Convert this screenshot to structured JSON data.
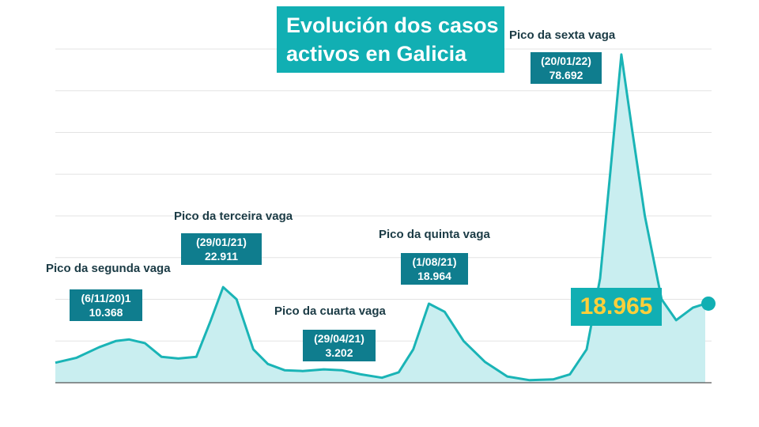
{
  "title": {
    "line1": "Evolución dos casos",
    "line2": "activos en Galicia"
  },
  "colors": {
    "accent": "#11afb3",
    "label_box": "#0f7d8e",
    "area_fill": "#c9eef0",
    "line": "#1ab4b6",
    "highlight_text": "#ffcf3a",
    "grid": "#e3e3e3"
  },
  "current_value": "18.965",
  "peaks": [
    {
      "label": "Pico da segunda vaga",
      "date": "(6/11/20)1",
      "value": "10.368"
    },
    {
      "label": "Pico da terceira vaga",
      "date": "(29/01/21)",
      "value": "22.911"
    },
    {
      "label": "Pico da cuarta vaga",
      "date": "(29/04/21)",
      "value": "3.202"
    },
    {
      "label": "Pico da quinta vaga",
      "date": "(1/08/21)",
      "value": "18.964"
    },
    {
      "label": "Pico da sexta vaga",
      "date": "(20/01/22)",
      "value": "78.692"
    }
  ],
  "chart_data": {
    "type": "area",
    "title": "Evolución dos casos activos en Galicia",
    "xlabel": "",
    "ylabel": "",
    "ylim": [
      0,
      80000
    ],
    "grid": true,
    "x": [
      "2020-09-01",
      "2020-09-20",
      "2020-10-10",
      "2020-10-25",
      "2020-11-06",
      "2020-11-20",
      "2020-12-05",
      "2020-12-20",
      "2021-01-05",
      "2021-01-18",
      "2021-01-29",
      "2021-02-10",
      "2021-02-25",
      "2021-03-10",
      "2021-03-25",
      "2021-04-10",
      "2021-04-29",
      "2021-05-15",
      "2021-06-01",
      "2021-06-20",
      "2021-07-05",
      "2021-07-18",
      "2021-08-01",
      "2021-08-15",
      "2021-09-01",
      "2021-09-20",
      "2021-10-10",
      "2021-10-30",
      "2021-11-20",
      "2021-12-05",
      "2021-12-20",
      "2022-01-01",
      "2022-01-10",
      "2022-01-20",
      "2022-01-30",
      "2022-02-10",
      "2022-02-25",
      "2022-03-10",
      "2022-03-25",
      "2022-04-05"
    ],
    "series": [
      {
        "values": [
          4800,
          6000,
          8500,
          10000,
          10368,
          9500,
          6200,
          5800,
          6200,
          15000,
          22911,
          20000,
          8000,
          4500,
          3000,
          2800,
          3202,
          3000,
          2000,
          1200,
          2500,
          8000,
          18964,
          17000,
          10000,
          5000,
          1500,
          600,
          800,
          2000,
          8000,
          25000,
          50000,
          78692,
          60000,
          40000,
          20000,
          15000,
          18000,
          18965
        ]
      }
    ]
  }
}
